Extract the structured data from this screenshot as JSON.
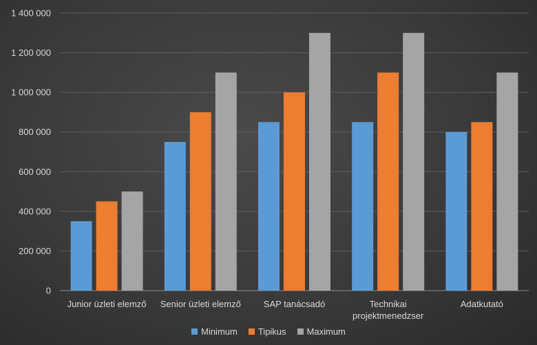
{
  "chart_data": {
    "type": "bar",
    "categories": [
      [
        "Junior üzleti elemző"
      ],
      [
        "Senior üzleti elemző"
      ],
      [
        "SAP tanácsadó"
      ],
      [
        "Technikai",
        "projektmenedzser"
      ],
      [
        "Adatkutató"
      ]
    ],
    "series": [
      {
        "name": "Minimum",
        "color": "#5b9bd5",
        "values": [
          350000,
          750000,
          850000,
          850000,
          800000
        ]
      },
      {
        "name": "Tipikus",
        "color": "#ed7d31",
        "values": [
          450000,
          900000,
          1000000,
          1100000,
          850000
        ]
      },
      {
        "name": "Maximum",
        "color": "#a5a5a5",
        "values": [
          500000,
          1100000,
          1300000,
          1300000,
          1100000
        ]
      }
    ],
    "yticks": [
      "0",
      "200 000",
      "400 000",
      "600 000",
      "800 000",
      "1 000 000",
      "1 200 000",
      "1 400 000"
    ],
    "ylim": [
      0,
      1400000
    ],
    "grid": true,
    "legend_position": "bottom"
  }
}
